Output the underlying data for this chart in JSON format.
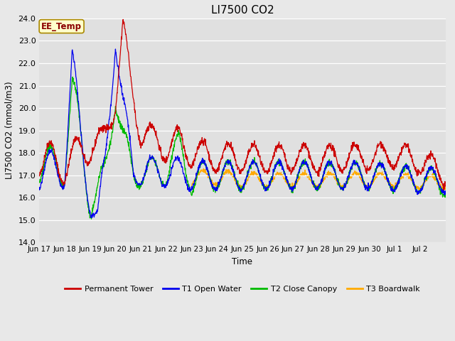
{
  "title": "LI7500 CO2",
  "ylabel": "LI7500 CO2 (mmol/m3)",
  "xlabel": "Time",
  "ylim": [
    14.0,
    24.0
  ],
  "yticks": [
    14.0,
    15.0,
    16.0,
    17.0,
    18.0,
    19.0,
    20.0,
    21.0,
    22.0,
    23.0,
    24.0
  ],
  "fig_bg_color": "#e8e8e8",
  "plot_bg_color": "#e0e0e0",
  "line_colors": {
    "permanent_tower": "#cc0000",
    "t1_open_water": "#0000ee",
    "t2_close_canopy": "#00bb00",
    "t3_boardwalk": "#ffaa00"
  },
  "legend_labels": [
    "Permanent Tower",
    "T1 Open Water",
    "T2 Close Canopy",
    "T3 Boardwalk"
  ],
  "annotation_text": "EE_Temp",
  "annotation_color": "#8b0000",
  "annotation_bg": "#ffffcc",
  "annotation_border": "#aa8800",
  "xtick_labels": [
    "Jun 17",
    "Jun 18",
    "Jun 19",
    "Jun 20",
    "Jun 21",
    "Jun 22",
    "Jun 23",
    "Jun 24",
    "Jun 25",
    "Jun 26",
    "Jun 27",
    "Jun 28",
    "Jun 29",
    "Jun 30",
    "Jul 1",
    "Jul 2"
  ],
  "n_points": 1600,
  "seed": 42
}
